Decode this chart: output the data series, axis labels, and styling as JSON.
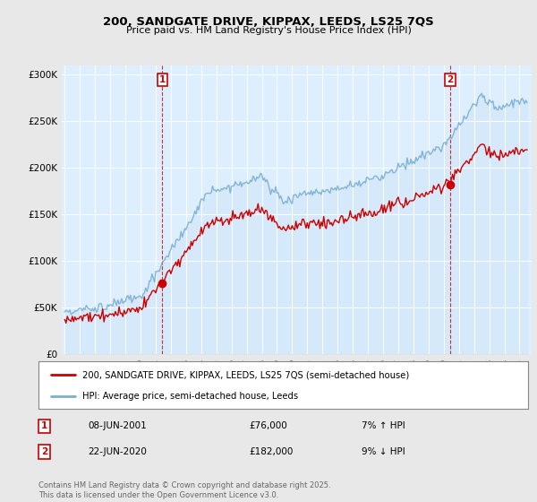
{
  "title": "200, SANDGATE DRIVE, KIPPAX, LEEDS, LS25 7QS",
  "subtitle": "Price paid vs. HM Land Registry's House Price Index (HPI)",
  "legend_line1": "200, SANDGATE DRIVE, KIPPAX, LEEDS, LS25 7QS (semi-detached house)",
  "legend_line2": "HPI: Average price, semi-detached house, Leeds",
  "footnote": "Contains HM Land Registry data © Crown copyright and database right 2025.\nThis data is licensed under the Open Government Licence v3.0.",
  "marker1_label": "1",
  "marker1_date": "08-JUN-2001",
  "marker1_price": "£76,000",
  "marker1_hpi": "7% ↑ HPI",
  "marker2_label": "2",
  "marker2_date": "22-JUN-2020",
  "marker2_price": "£182,000",
  "marker2_hpi": "9% ↓ HPI",
  "red_color": "#cc0000",
  "blue_color": "#7aafd4",
  "plot_bg_color": "#ddeeff",
  "background_color": "#e8e8e8",
  "ylim": [
    0,
    310000
  ],
  "yticks": [
    0,
    50000,
    100000,
    150000,
    200000,
    250000,
    300000
  ],
  "ytick_labels": [
    "£0",
    "£50K",
    "£100K",
    "£150K",
    "£200K",
    "£250K",
    "£300K"
  ],
  "price1": 76000,
  "price2": 182000,
  "year1": 2001.44,
  "year2": 2020.44
}
